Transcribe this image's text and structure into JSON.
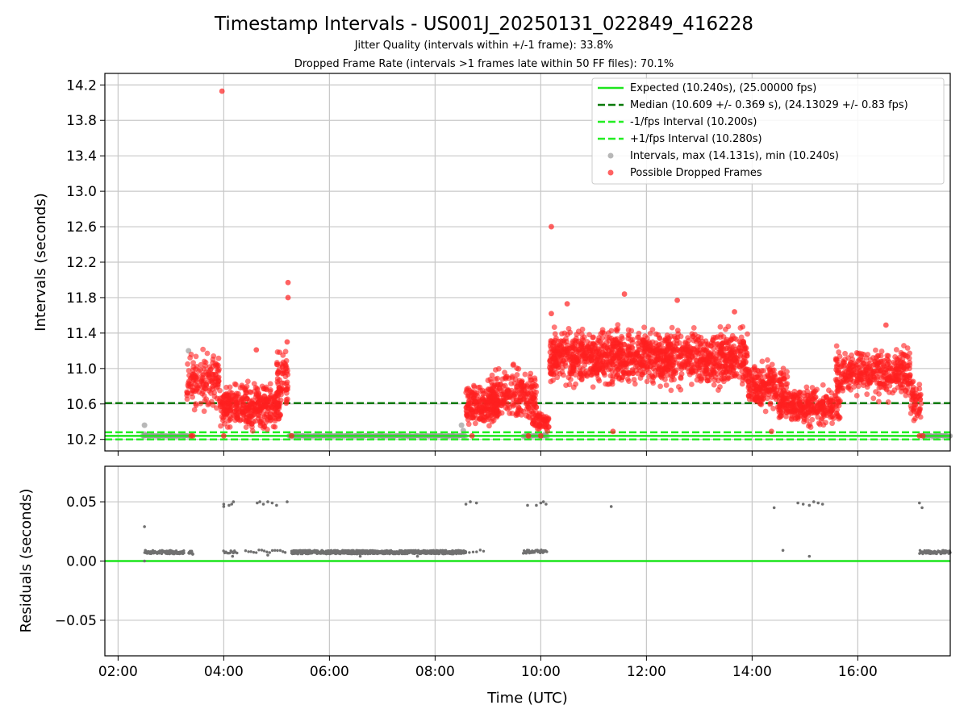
{
  "title": "Timestamp Intervals - US001J_20250131_022849_416228",
  "subtitles": [
    "Jitter Quality (intervals within +/-1 frame): 33.8%",
    "Dropped Frame Rate (intervals >1 frames late within 50 FF files): 70.1%"
  ],
  "colors": {
    "expected": "#1de51d",
    "median": "#0a7a0a",
    "interval_bound": "#22ee22",
    "intervals": "#9a9a9a",
    "dropped": "#ff2020",
    "residuals": "#707070",
    "grid": "#c8c8c8"
  },
  "chart_data": [
    {
      "type": "scatter",
      "ylabel": "Intervals (seconds)",
      "xlim": [
        "01:45",
        "17:45"
      ],
      "ylim": [
        10.07,
        14.33
      ],
      "yticks": [
        10.2,
        10.6,
        11.0,
        11.4,
        11.8,
        12.2,
        12.6,
        13.0,
        13.4,
        13.8,
        14.2
      ],
      "ytick_labels": [
        "10.2",
        "10.6",
        "11.0",
        "11.4",
        "11.8",
        "12.2",
        "12.6",
        "13.0",
        "13.4",
        "13.8",
        "14.2"
      ],
      "grid": true,
      "legend_placement": "top-right",
      "legend": [
        {
          "label": "Expected (10.240s), (25.00000 fps)",
          "kind": "solid-line",
          "color_key": "expected"
        },
        {
          "label": "Median (10.609 +/- 0.369 s), (24.13029 +/- 0.83 fps)",
          "kind": "dashed-line",
          "color_key": "median"
        },
        {
          "label": "-1/fps Interval (10.200s)",
          "kind": "dashed-line",
          "color_key": "interval_bound"
        },
        {
          "label": "+1/fps Interval (10.280s)",
          "kind": "dashed-line",
          "color_key": "interval_bound"
        },
        {
          "label": "Intervals, max (14.131s), min (10.240s)",
          "kind": "marker",
          "color_key": "intervals"
        },
        {
          "label": "Possible Dropped Frames",
          "kind": "marker",
          "color_key": "dropped"
        }
      ],
      "reference_lines": [
        {
          "value": 10.24,
          "style": "solid",
          "color_key": "expected"
        },
        {
          "value": 10.609,
          "style": "dashed",
          "color_key": "median"
        },
        {
          "value": 10.2,
          "style": "dashed",
          "color_key": "interval_bound"
        },
        {
          "value": 10.28,
          "style": "dashed",
          "color_key": "interval_bound"
        }
      ],
      "baseline_points": [
        [
          "02:30",
          10.24
        ],
        [
          "02:45",
          10.24
        ],
        [
          "03:00",
          10.24
        ],
        [
          "03:15",
          10.24
        ],
        [
          "03:22",
          10.24
        ],
        [
          "05:15",
          10.24
        ],
        [
          "05:30",
          10.24
        ],
        [
          "06:00",
          10.24
        ],
        [
          "06:30",
          10.24
        ],
        [
          "07:00",
          10.24
        ],
        [
          "07:30",
          10.24
        ],
        [
          "08:00",
          10.24
        ],
        [
          "08:20",
          10.24
        ],
        [
          "09:45",
          10.24
        ],
        [
          "10:05",
          10.24
        ],
        [
          "17:15",
          10.24
        ],
        [
          "17:30",
          10.24
        ],
        [
          "17:45",
          10.24
        ]
      ],
      "interval_points": [
        [
          "02:30",
          10.36
        ],
        [
          "02:30",
          10.26
        ],
        [
          "03:20",
          11.2
        ],
        [
          "08:30",
          10.36
        ],
        [
          "08:32",
          10.3
        ],
        [
          "10:05",
          10.26
        ],
        [
          "08:15",
          10.24
        ]
      ],
      "dropped_clusters": [
        {
          "start": "03:18",
          "end": "03:55",
          "ymin": 10.45,
          "ymax": 11.3,
          "count": 150
        },
        {
          "start": "03:55",
          "end": "05:05",
          "ymin": 10.25,
          "ymax": 10.9,
          "count": 380
        },
        {
          "start": "05:00",
          "end": "05:13",
          "ymin": 10.4,
          "ymax": 11.3,
          "count": 60
        },
        {
          "start": "08:35",
          "end": "09:12",
          "ymin": 10.25,
          "ymax": 10.9,
          "count": 180
        },
        {
          "start": "09:00",
          "end": "09:55",
          "ymin": 10.3,
          "ymax": 11.1,
          "count": 260
        },
        {
          "start": "09:50",
          "end": "10:10",
          "ymin": 10.25,
          "ymax": 10.55,
          "count": 60
        },
        {
          "start": "10:10",
          "end": "13:55",
          "ymin": 10.7,
          "ymax": 11.55,
          "count": 1300
        },
        {
          "start": "13:55",
          "end": "14:40",
          "ymin": 10.45,
          "ymax": 11.15,
          "count": 220
        },
        {
          "start": "14:30",
          "end": "15:40",
          "ymin": 10.3,
          "ymax": 10.85,
          "count": 300
        },
        {
          "start": "15:35",
          "end": "17:00",
          "ymin": 10.6,
          "ymax": 11.3,
          "count": 380
        },
        {
          "start": "17:00",
          "end": "17:12",
          "ymin": 10.3,
          "ymax": 10.95,
          "count": 50
        }
      ],
      "dropped_outliers": [
        [
          "03:58",
          14.13
        ],
        [
          "05:13",
          11.97
        ],
        [
          "05:13",
          11.8
        ],
        [
          "05:12",
          11.3
        ],
        [
          "10:12",
          12.6
        ],
        [
          "10:12",
          11.62
        ],
        [
          "11:35",
          11.84
        ],
        [
          "12:35",
          11.77
        ],
        [
          "10:30",
          11.73
        ],
        [
          "13:40",
          11.64
        ],
        [
          "04:37",
          11.21
        ],
        [
          "16:32",
          11.49
        ],
        [
          "03:23",
          10.24
        ],
        [
          "03:25",
          10.24
        ],
        [
          "04:00",
          10.24
        ],
        [
          "05:17",
          10.24
        ],
        [
          "08:42",
          10.24
        ],
        [
          "09:46",
          10.24
        ],
        [
          "10:00",
          10.24
        ],
        [
          "11:22",
          10.29
        ],
        [
          "14:22",
          10.29
        ],
        [
          "17:10",
          10.24
        ],
        [
          "17:14",
          10.24
        ]
      ]
    },
    {
      "type": "scatter",
      "xlabel": "Time (UTC)",
      "ylabel": "Residuals (seconds)",
      "xlim": [
        "01:45",
        "17:45"
      ],
      "ylim": [
        -0.08,
        0.08
      ],
      "yticks": [
        -0.05,
        0.0,
        0.05
      ],
      "ytick_labels": [
        "−0.05",
        "0.00",
        "0.05"
      ],
      "xticks": [
        "02:00",
        "04:00",
        "06:00",
        "08:00",
        "10:00",
        "12:00",
        "14:00",
        "16:00"
      ],
      "grid": true,
      "zero_line": 0.0,
      "bands": [
        {
          "start": "02:30",
          "end": "03:15",
          "y": 0.0075,
          "count": 70
        },
        {
          "start": "03:20",
          "end": "03:25",
          "y": 0.007,
          "count": 10
        },
        {
          "start": "04:00",
          "end": "04:15",
          "y": 0.008,
          "count": 12
        },
        {
          "start": "04:25",
          "end": "05:10",
          "y": 0.008,
          "count": 16
        },
        {
          "start": "05:17",
          "end": "08:35",
          "y": 0.0075,
          "count": 700
        },
        {
          "start": "08:35",
          "end": "08:55",
          "y": 0.008,
          "count": 6
        },
        {
          "start": "09:40",
          "end": "10:07",
          "y": 0.008,
          "count": 30
        },
        {
          "start": "17:10",
          "end": "17:45",
          "y": 0.0075,
          "count": 70
        }
      ],
      "points": [
        [
          "02:30",
          0.029
        ],
        [
          "02:30",
          0.0
        ],
        [
          "02:31",
          0.009
        ],
        [
          "04:00",
          0.048
        ],
        [
          "04:00",
          0.046
        ],
        [
          "04:06",
          0.047
        ],
        [
          "04:09",
          0.048
        ],
        [
          "04:11",
          0.05
        ],
        [
          "04:38",
          0.049
        ],
        [
          "04:41",
          0.05
        ],
        [
          "04:45",
          0.048
        ],
        [
          "04:50",
          0.05
        ],
        [
          "04:55",
          0.049
        ],
        [
          "05:00",
          0.047
        ],
        [
          "05:12",
          0.05
        ],
        [
          "08:35",
          0.048
        ],
        [
          "08:40",
          0.05
        ],
        [
          "08:47",
          0.049
        ],
        [
          "09:45",
          0.047
        ],
        [
          "09:55",
          0.047
        ],
        [
          "10:00",
          0.049
        ],
        [
          "10:03",
          0.05
        ],
        [
          "10:06",
          0.048
        ],
        [
          "11:20",
          0.046
        ],
        [
          "14:25",
          0.045
        ],
        [
          "14:52",
          0.049
        ],
        [
          "14:58",
          0.048
        ],
        [
          "15:05",
          0.047
        ],
        [
          "15:10",
          0.05
        ],
        [
          "15:15",
          0.049
        ],
        [
          "15:20",
          0.048
        ],
        [
          "17:10",
          0.049
        ],
        [
          "17:13",
          0.045
        ],
        [
          "04:10",
          0.004
        ],
        [
          "04:50",
          0.005
        ],
        [
          "06:35",
          0.004
        ],
        [
          "07:40",
          0.004
        ],
        [
          "14:35",
          0.009
        ],
        [
          "15:05",
          0.004
        ]
      ]
    }
  ]
}
